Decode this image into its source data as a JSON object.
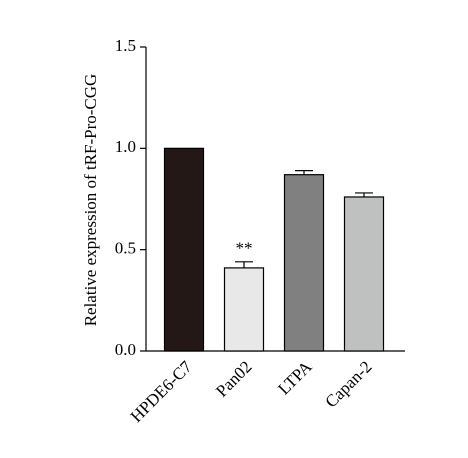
{
  "chart_data": {
    "type": "bar",
    "y_label": "Relative expression of tRF-Pro-CGG",
    "categories": [
      "HPDE6-C7",
      "Pan02",
      "LTPA",
      "Capan-2"
    ],
    "values": [
      1.0,
      0.41,
      0.87,
      0.76
    ],
    "errors": [
      null,
      0.03,
      0.02,
      0.02
    ],
    "colors": [
      "#231815",
      "#e8e8e8",
      "#808080",
      "#bfc1c0"
    ],
    "annotations": [
      {
        "text": "**",
        "category": "Pan02"
      }
    ],
    "ylim": [
      0,
      1.5
    ],
    "yticks": [
      {
        "value": 0,
        "label": "0.0"
      },
      0.5,
      {
        "value": 1,
        "label": "1.0"
      },
      {
        "value": 1.5,
        "label": "1.5"
      }
    ]
  }
}
